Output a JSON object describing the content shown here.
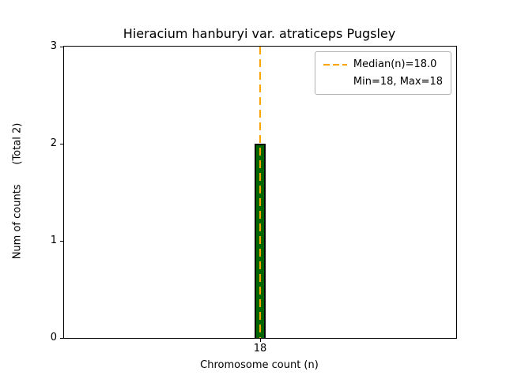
{
  "chart_data": {
    "type": "bar",
    "title": "Hieracium hanburyi var. atraticeps Pugsley",
    "categories": [
      "18"
    ],
    "values": [
      2
    ],
    "xlabel": "Chromosome count (n)",
    "ylabel": "Num of counts      (Total 2)",
    "ylim": [
      0,
      3
    ],
    "yticks": [
      0,
      1,
      2,
      3
    ],
    "total_counts": 2,
    "median_n": "18.0",
    "min_n": 18,
    "max_n": 18,
    "bar_color": "#006400",
    "bar_edge_color": "#000000",
    "median_line_color": "#FFA500",
    "grid": false,
    "legend_position": "upper right",
    "legend": [
      {
        "label": "Median(n)=18.0",
        "style": "dashed-line"
      },
      {
        "label": "Min=18, Max=18",
        "style": "none"
      }
    ]
  }
}
